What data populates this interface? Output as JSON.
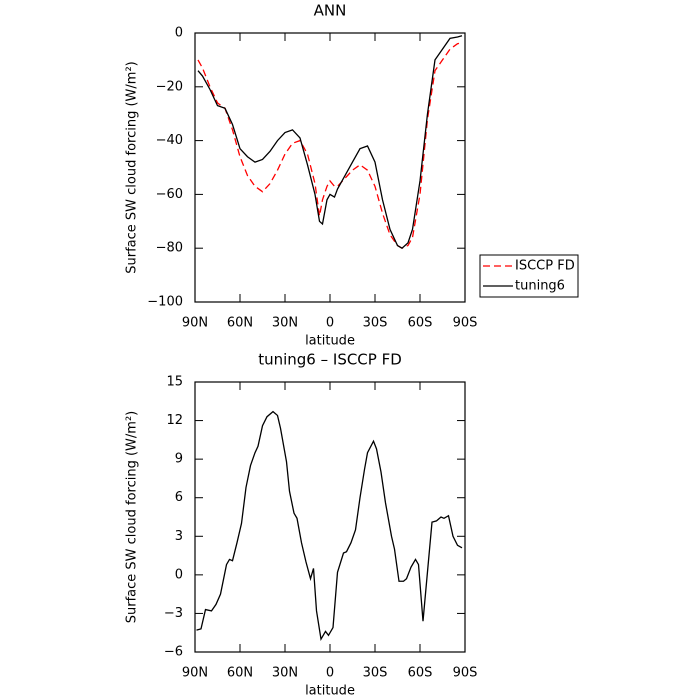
{
  "chart_data": [
    {
      "type": "line",
      "title": "ANN",
      "xlabel": "latitude",
      "ylabel": "Surface SW cloud forcing (W/m²)",
      "x": [
        88,
        85,
        80,
        75,
        70,
        65,
        60,
        55,
        50,
        45,
        40,
        35,
        30,
        25,
        20,
        15,
        10,
        7,
        5,
        2,
        0,
        -3,
        -5,
        -10,
        -15,
        -20,
        -25,
        -30,
        -35,
        -40,
        -45,
        -48,
        -52,
        -55,
        -60,
        -65,
        -70,
        -75,
        -80,
        -85,
        -88
      ],
      "series": [
        {
          "name": "ISCCP FD",
          "color": "#ff0000",
          "linestyle": "dashed",
          "values": [
            -10,
            -13,
            -20,
            -26,
            -28,
            -36,
            -46,
            -53,
            -57,
            -59,
            -56,
            -51,
            -45,
            -41,
            -40,
            -45,
            -56,
            -68,
            -62,
            -57,
            -55,
            -57,
            -57,
            -54,
            -51,
            -49,
            -51,
            -57,
            -67,
            -75,
            -79,
            -80,
            -79,
            -76,
            -60,
            -32,
            -14,
            -10,
            -6,
            -4,
            -3.5
          ]
        },
        {
          "name": "tuning6",
          "color": "#000000",
          "linestyle": "solid",
          "values": [
            -14,
            -16,
            -21,
            -27,
            -28,
            -34,
            -43,
            -46,
            -48,
            -47,
            -44,
            -40,
            -37,
            -36,
            -39,
            -49,
            -60,
            -70,
            -71,
            -62,
            -60,
            -61,
            -58,
            -53,
            -48,
            -43,
            -42,
            -48,
            -62,
            -73,
            -79,
            -80,
            -78,
            -73,
            -55,
            -30,
            -10,
            -6,
            -2,
            -1.5,
            -1
          ]
        }
      ],
      "xlim": [
        90,
        -90
      ],
      "xticks": [
        {
          "value": 90,
          "label": "90N"
        },
        {
          "value": 60,
          "label": "60N"
        },
        {
          "value": 30,
          "label": "30N"
        },
        0,
        {
          "value": -30,
          "label": "30S"
        },
        {
          "value": -60,
          "label": "60S"
        },
        {
          "value": -90,
          "label": "90S"
        }
      ],
      "ylim": [
        -100,
        0
      ],
      "yticks": [
        {
          "value": -100,
          "label": "−100"
        },
        {
          "value": -80,
          "label": "−80"
        },
        {
          "value": -60,
          "label": "−60"
        },
        {
          "value": -40,
          "label": "−40"
        },
        {
          "value": -20,
          "label": "−20"
        },
        0
      ],
      "legend": "right"
    },
    {
      "type": "line",
      "title": "tuning6 – ISCCP FD",
      "xlabel": "latitude",
      "ylabel": "Surface SW cloud forcing (W/m²)",
      "x": [
        89,
        86,
        83,
        79,
        76,
        73,
        69,
        67,
        65,
        62,
        59,
        56,
        53,
        50,
        48,
        45,
        42,
        38,
        35,
        33,
        29,
        27,
        24,
        22,
        19,
        16,
        13,
        11,
        9,
        6,
        3,
        1,
        -2,
        -5,
        -9,
        -11,
        -14,
        -17,
        -20,
        -23,
        -25,
        -29,
        -31,
        -34,
        -37,
        -41,
        -43,
        -46,
        -49,
        -51,
        -54,
        -57,
        -59,
        -62,
        -68,
        -71,
        -74,
        -76,
        -79,
        -82,
        -85,
        -88
      ],
      "series": [
        {
          "name": "tuning6",
          "color": "#000000",
          "linestyle": "solid",
          "values": [
            -4.3,
            -4.2,
            -2.7,
            -2.8,
            -2.3,
            -1.5,
            0.8,
            1.2,
            1.1,
            2.5,
            4,
            6.8,
            8.5,
            9.5,
            10,
            11.6,
            12.3,
            12.7,
            12.4,
            11.4,
            8.8,
            6.5,
            4.8,
            4.4,
            2.5,
            1,
            -0.3,
            0.5,
            -2.8,
            -5,
            -4.4,
            -4.7,
            -4.1,
            0.2,
            1.7,
            1.8,
            2.5,
            3.5,
            6,
            8.2,
            9.5,
            10.4,
            9.8,
            8,
            5.6,
            3,
            2,
            -0.5,
            -0.5,
            -0.3,
            0.6,
            1.2,
            0.8,
            -3.6,
            4.1,
            4.2,
            4.5,
            4.4,
            4.6,
            3,
            2.3,
            2.1
          ]
        }
      ],
      "xlim": [
        90,
        -90
      ],
      "xticks": [
        {
          "value": 90,
          "label": "90N"
        },
        {
          "value": 60,
          "label": "60N"
        },
        {
          "value": 30,
          "label": "30N"
        },
        0,
        {
          "value": -30,
          "label": "30S"
        },
        {
          "value": -60,
          "label": "60S"
        },
        {
          "value": -90,
          "label": "90S"
        }
      ],
      "ylim": [
        -6,
        15
      ],
      "yticks": [
        {
          "value": -6,
          "label": "−6"
        },
        {
          "value": -3,
          "label": "−3"
        },
        0,
        3,
        6,
        9,
        12,
        15
      ]
    }
  ]
}
